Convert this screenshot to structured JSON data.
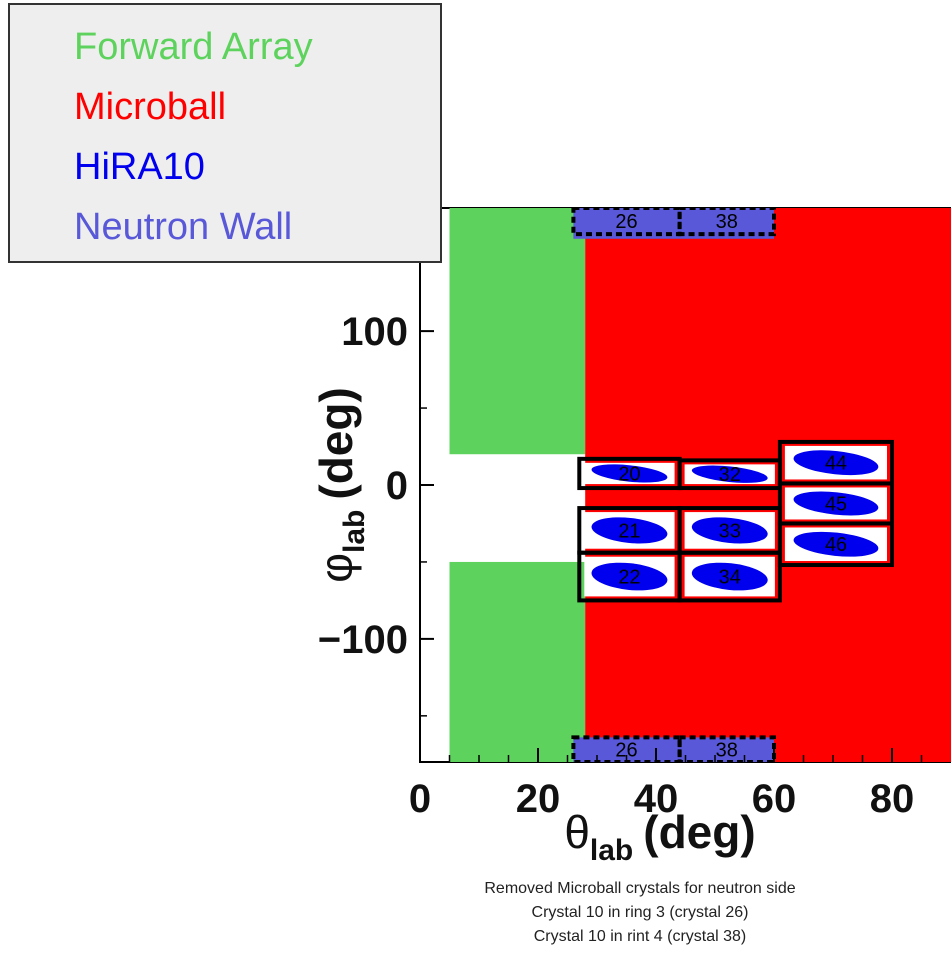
{
  "chart_data": {
    "type": "scatter",
    "xlabel": "θ",
    "xlabel_sub": "lab",
    "xlabel_unit": "(deg)",
    "ylabel": "φ",
    "ylabel_sub": "lab",
    "ylabel_unit": "(deg)",
    "xlim": [
      0,
      90
    ],
    "ylim": [
      -180,
      180
    ],
    "x_ticks": [
      0,
      20,
      40,
      60,
      80
    ],
    "y_ticks": [
      100,
      0,
      -100
    ],
    "y_tick_labels": [
      "100",
      "0",
      "−100"
    ],
    "legend": {
      "placement": "top-left",
      "entries": [
        {
          "label": "Forward Array",
          "color": "#5dd35d"
        },
        {
          "label": "Microball",
          "color": "#ff0000"
        },
        {
          "label": "HiRA10",
          "color": "#0000ee"
        },
        {
          "label": "Neutron Wall",
          "color": "#5858d8"
        }
      ]
    },
    "regions": [
      {
        "series": "Forward Array",
        "theta": [
          5,
          28
        ],
        "phi": [
          20,
          180
        ]
      },
      {
        "series": "Forward Array",
        "theta": [
          5,
          28
        ],
        "phi": [
          -180,
          -50
        ]
      },
      {
        "series": "Microball",
        "theta": [
          28,
          90
        ],
        "phi": [
          -180,
          180
        ]
      },
      {
        "series": "Neutron Wall",
        "theta": [
          26,
          60
        ],
        "phi": [
          160,
          180
        ]
      },
      {
        "series": "Neutron Wall",
        "theta": [
          26,
          60
        ],
        "phi": [
          -180,
          -164
        ]
      }
    ],
    "hira_telescopes": [
      {
        "label": "20",
        "theta": [
          27,
          44
        ],
        "phi": [
          -2,
          17
        ]
      },
      {
        "label": "21",
        "theta": [
          27,
          44
        ],
        "phi": [
          -44,
          -15
        ]
      },
      {
        "label": "22",
        "theta": [
          27,
          44
        ],
        "phi": [
          -75,
          -44
        ]
      },
      {
        "label": "32",
        "theta": [
          44,
          61
        ],
        "phi": [
          -2,
          16
        ]
      },
      {
        "label": "33",
        "theta": [
          44,
          61
        ],
        "phi": [
          -44,
          -15
        ]
      },
      {
        "label": "34",
        "theta": [
          44,
          61
        ],
        "phi": [
          -75,
          -44
        ]
      },
      {
        "label": "44",
        "theta": [
          61,
          80
        ],
        "phi": [
          1,
          28
        ]
      },
      {
        "label": "45",
        "theta": [
          61,
          80
        ],
        "phi": [
          -25,
          1
        ]
      },
      {
        "label": "46",
        "theta": [
          61,
          80
        ],
        "phi": [
          -52,
          -25
        ]
      }
    ],
    "removed_crystals": [
      {
        "label": "26",
        "theta": [
          26,
          44
        ],
        "phi": [
          163,
          180
        ]
      },
      {
        "label": "38",
        "theta": [
          44,
          60
        ],
        "phi": [
          163,
          180
        ]
      },
      {
        "label": "26",
        "theta": [
          26,
          44
        ],
        "phi": [
          -180,
          -164
        ]
      },
      {
        "label": "38",
        "theta": [
          44,
          60
        ],
        "phi": [
          -180,
          -164
        ]
      }
    ]
  },
  "caption": [
    "Removed Microball crystals for neutron side",
    "Crystal 10 in ring 3 (crystal 26)",
    "Crystal 10 in rint 4 (crystal 38)"
  ]
}
